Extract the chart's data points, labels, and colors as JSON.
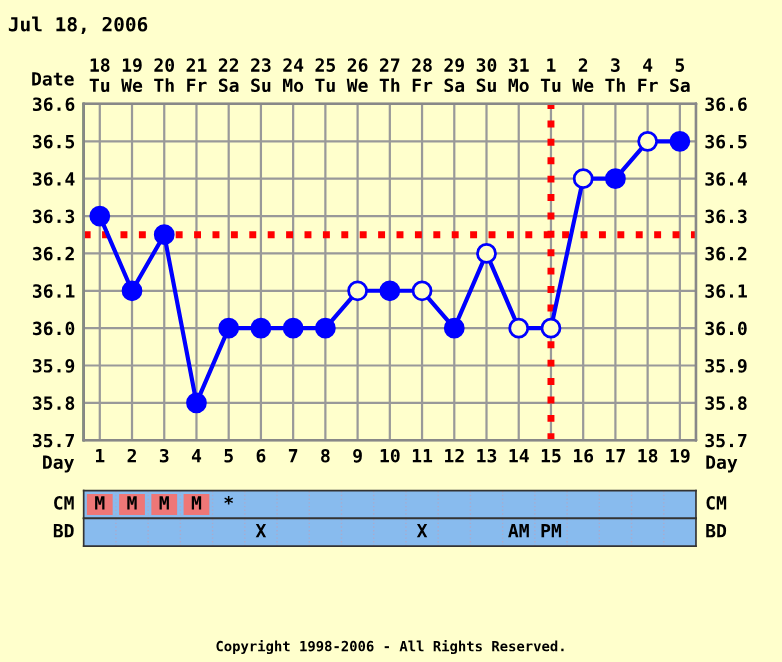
{
  "chart_data": [
    {
      "type": "line",
      "title": "Jul 18, 2006",
      "x": [
        1,
        2,
        3,
        4,
        5,
        6,
        7,
        8,
        9,
        10,
        11,
        12,
        13,
        14,
        15,
        16,
        17,
        18,
        19
      ],
      "series": [
        {
          "color": "#0000ff",
          "marker": "none",
          "values": [
            36.3,
            36.1,
            36.25,
            35.8,
            36.0,
            36.0,
            36.0,
            36.0,
            36.1,
            36.1,
            36.1,
            36.0,
            36.2,
            36.0,
            36.0,
            36.4,
            36.4,
            36.5,
            36.5
          ]
        },
        {
          "type": "scatter",
          "color": "#0000ff",
          "marker": "circle",
          "x": [
            1,
            2,
            3,
            4,
            5,
            6,
            7,
            8,
            10,
            12,
            17,
            19
          ],
          "values": [
            36.3,
            36.1,
            36.25,
            35.8,
            36.0,
            36.0,
            36.0,
            36.0,
            36.1,
            36.0,
            36.4,
            36.5
          ]
        },
        {
          "type": "scatter",
          "color": "#ffffcc",
          "marker": "circle",
          "x": [
            9,
            11,
            13,
            14,
            15,
            16,
            18
          ],
          "values": [
            36.1,
            36.1,
            36.2,
            36.0,
            36.0,
            36.4,
            36.5
          ]
        }
      ],
      "xlim": [
        0.5,
        19.5
      ],
      "xticks": [
        1,
        2,
        3,
        4,
        5,
        6,
        7,
        8,
        9,
        10,
        11,
        12,
        13,
        14,
        15,
        16,
        17,
        18,
        19
      ],
      "xlabel": "Day",
      "x2lim": [
        "2006-07-17T12:00",
        "2006-08-05T12:00"
      ],
      "x2label": "Date",
      "x2ticks": [
        {
          "value": "2006-07-18",
          "label": "18\nTu"
        },
        {
          "value": "2006-07-19",
          "label": "19\nWe"
        },
        {
          "value": "2006-07-20",
          "label": "20\nTh"
        },
        {
          "value": "2006-07-21",
          "label": "21\nFr"
        },
        {
          "value": "2006-07-22",
          "label": "22\nSa"
        },
        {
          "value": "2006-07-23",
          "label": "23\nSu"
        },
        {
          "value": "2006-07-24",
          "label": "24\nMo"
        },
        {
          "value": "2006-07-25",
          "label": "25\nTu"
        },
        {
          "value": "2006-07-26",
          "label": "26\nWe"
        },
        {
          "value": "2006-07-27",
          "label": "27\nTh"
        },
        {
          "value": "2006-07-28",
          "label": "28\nFr"
        },
        {
          "value": "2006-07-29",
          "label": "29\nSa"
        },
        {
          "value": "2006-07-30",
          "label": "30\nSu"
        },
        {
          "value": "2006-07-31",
          "label": "31\nMo"
        },
        {
          "value": "2006-08-01",
          "label": "1\nTu"
        },
        {
          "value": "2006-08-02",
          "label": "2\nWe"
        },
        {
          "value": "2006-08-03",
          "label": "3\nTh"
        },
        {
          "value": "2006-08-04",
          "label": "4\nFr"
        },
        {
          "value": "2006-08-05",
          "label": "5\nSa"
        }
      ],
      "ylim": [
        35.7,
        36.6
      ],
      "yticks": [
        {
          "value": 35.7,
          "label": "35.7"
        },
        {
          "value": 35.8,
          "label": "35.8"
        },
        {
          "value": 35.9,
          "label": "35.9"
        },
        {
          "value": 36.0,
          "label": "36.0"
        },
        {
          "value": 36.1,
          "label": "36.1"
        },
        {
          "value": 36.2,
          "label": "36.2"
        },
        {
          "value": 36.3,
          "label": "36.3"
        },
        {
          "value": 36.4,
          "label": "36.4"
        },
        {
          "value": 36.5,
          "label": "36.5"
        },
        {
          "value": 36.6,
          "label": "36.6"
        }
      ],
      "y2lim": [
        35.7,
        36.6
      ],
      "y2ticks": [
        {
          "value": 35.7,
          "label": "35.7"
        },
        {
          "value": 35.8,
          "label": "35.8"
        },
        {
          "value": 35.9,
          "label": "35.9"
        },
        {
          "value": 36.0,
          "label": "36.0"
        },
        {
          "value": 36.1,
          "label": "36.1"
        },
        {
          "value": 36.2,
          "label": "36.2"
        },
        {
          "value": 36.3,
          "label": "36.3"
        },
        {
          "value": 36.4,
          "label": "36.4"
        },
        {
          "value": 36.5,
          "label": "36.5"
        },
        {
          "value": 36.6,
          "label": "36.6"
        }
      ],
      "grid": true,
      "line_style": "solid",
      "ref_lines": [
        {
          "axis": "y",
          "value": 36.25,
          "color": "#ff0000",
          "line_style": "dotted"
        },
        {
          "axis": "x",
          "value": 15,
          "color": "#ff0000",
          "line_style": "dotted"
        }
      ],
      "annotations": [
        "Copyright 1998-2006 - All Rights Reserved."
      ]
    },
    {
      "type": "other",
      "ylabel": "CM",
      "categories": [
        null,
        null,
        null,
        null,
        null,
        null,
        null,
        null,
        null,
        null,
        null,
        null,
        null,
        null,
        null,
        null,
        null,
        null,
        null
      ],
      "value_labels": [
        "M",
        "M",
        "M",
        "M",
        "*",
        null,
        null,
        null,
        null,
        null,
        null,
        null,
        null,
        null,
        null,
        null,
        null,
        null,
        null
      ]
    },
    {
      "type": "other",
      "ylabel": "BD",
      "categories": [
        null,
        null,
        null,
        null,
        null,
        null,
        null,
        null,
        null,
        null,
        null,
        null,
        null,
        null,
        null,
        null,
        null,
        null,
        null
      ],
      "value_labels": [
        null,
        null,
        null,
        null,
        null,
        "X",
        null,
        null,
        null,
        null,
        "X",
        null,
        null,
        "AM",
        "PM",
        null,
        null,
        null,
        null
      ]
    }
  ]
}
